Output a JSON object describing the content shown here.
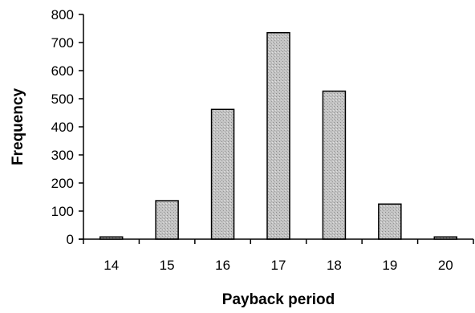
{
  "chart_data": {
    "type": "bar",
    "title": "",
    "xlabel": "Payback period",
    "ylabel": "Frequency",
    "categories": [
      "14",
      "15",
      "16",
      "17",
      "18",
      "19",
      "20"
    ],
    "values": [
      8,
      137,
      462,
      735,
      527,
      125,
      8
    ],
    "ylim": [
      0,
      800
    ],
    "yticks": [
      0,
      100,
      200,
      300,
      400,
      500,
      600,
      700,
      800
    ],
    "grid": false,
    "legend": "none",
    "bar_color": "#bdbdbd"
  }
}
